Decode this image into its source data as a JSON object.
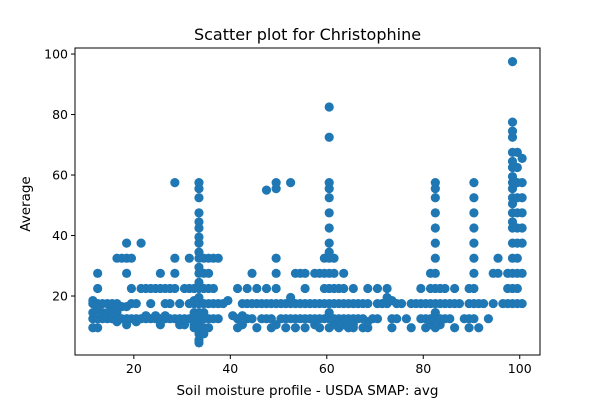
{
  "chart_data": {
    "type": "scatter",
    "title": "Scatter plot for Christophine",
    "xlabel": "Soil moisture profile - USDA SMAP: avg",
    "ylabel": "Average",
    "xlim": [
      7.8,
      104.2
    ],
    "ylim": [
      0.5,
      102.0
    ],
    "xticks": [
      20,
      40,
      60,
      80,
      100
    ],
    "yticks": [
      20,
      40,
      60,
      80,
      100
    ],
    "grid": false,
    "legend": "none",
    "marker_color": "#1f77b4",
    "columns": [
      {
        "x": 11.5,
        "y": [
          9.5,
          12.5,
          14.5,
          17.5,
          18.5
        ]
      },
      {
        "x": 12.5,
        "y": [
          9.5,
          12.5,
          15.5,
          17.5,
          22.5,
          27.5
        ]
      },
      {
        "x": 13.5,
        "y": [
          12.5,
          14.5,
          17.5
        ]
      },
      {
        "x": 14.5,
        "y": [
          12.5,
          14.5,
          17.5
        ]
      },
      {
        "x": 15.5,
        "y": [
          12.5,
          15.5,
          17.5
        ]
      },
      {
        "x": 16.5,
        "y": [
          11.5,
          12.5,
          14.5,
          17.5,
          32.5
        ]
      },
      {
        "x": 17.5,
        "y": [
          12.5,
          16.5,
          32.5
        ]
      },
      {
        "x": 18.5,
        "y": [
          10.5,
          12.5,
          16.5,
          27.5,
          32.5,
          37.5
        ]
      },
      {
        "x": 19.5,
        "y": [
          12.5,
          17.5,
          22.5,
          32.5
        ]
      },
      {
        "x": 20.5,
        "y": [
          11.5,
          12.5,
          17.5
        ]
      },
      {
        "x": 21.5,
        "y": [
          12.5,
          22.5,
          37.5
        ]
      },
      {
        "x": 22.5,
        "y": [
          12.5,
          13.5,
          22.5
        ]
      },
      {
        "x": 23.5,
        "y": [
          12.5,
          17.5,
          22.5
        ]
      },
      {
        "x": 24.5,
        "y": [
          12.5,
          13.5,
          22.5
        ]
      },
      {
        "x": 25.5,
        "y": [
          10.5,
          12.5,
          22.5,
          27.5
        ]
      },
      {
        "x": 26.5,
        "y": [
          12.5,
          13.5,
          17.5,
          22.5
        ]
      },
      {
        "x": 27.5,
        "y": [
          12.5,
          17.5,
          22.5
        ]
      },
      {
        "x": 28.5,
        "y": [
          12.5,
          22.5,
          27.5,
          32.5,
          57.5
        ]
      },
      {
        "x": 29.5,
        "y": [
          10.5,
          12.5,
          17.5
        ]
      },
      {
        "x": 30.5,
        "y": [
          10.5,
          12.5,
          22.5
        ]
      },
      {
        "x": 31.5,
        "y": [
          12.5,
          17.5,
          22.5,
          32.5
        ]
      },
      {
        "x": 32.5,
        "y": [
          9.5,
          10.5,
          12.5,
          14.5,
          17.5,
          18.5,
          22.5
        ]
      },
      {
        "x": 33.5,
        "y": [
          4.5,
          5.5,
          7.5,
          9.5,
          11.5,
          12.5,
          14.5,
          17.5,
          19.5,
          22.5,
          24.5,
          27.5,
          29.5,
          32.5,
          34.5,
          37.5,
          39.5,
          42.5,
          44.5,
          47.5,
          52.5,
          55.5,
          57.5
        ]
      },
      {
        "x": 34.5,
        "y": [
          7.5,
          9.5,
          12.5,
          14.5,
          17.5,
          22.5,
          27.5,
          32.5
        ]
      },
      {
        "x": 35.5,
        "y": [
          9.5,
          12.5,
          17.5,
          22.5,
          27.5,
          32.5
        ]
      },
      {
        "x": 36.5,
        "y": [
          12.5,
          17.5,
          22.5,
          32.5
        ]
      },
      {
        "x": 37.5,
        "y": [
          12.5,
          17.5,
          32.5
        ]
      },
      {
        "x": 38.5,
        "y": [
          17.5
        ]
      },
      {
        "x": 39.5,
        "y": [
          18.5
        ]
      },
      {
        "x": 40.5,
        "y": [
          13.5
        ]
      },
      {
        "x": 41.5,
        "y": [
          9.5,
          12.5,
          22.5
        ]
      },
      {
        "x": 42.5,
        "y": [
          10.5,
          13.5,
          17.5
        ]
      },
      {
        "x": 43.5,
        "y": [
          12.5,
          17.5,
          22.5
        ]
      },
      {
        "x": 44.5,
        "y": [
          12.5,
          17.5,
          27.5
        ]
      },
      {
        "x": 45.5,
        "y": [
          9.5,
          17.5,
          22.5
        ]
      },
      {
        "x": 46.5,
        "y": [
          12.5,
          17.5
        ]
      },
      {
        "x": 47.5,
        "y": [
          12.5,
          17.5,
          22.5,
          55.0
        ]
      },
      {
        "x": 48.5,
        "y": [
          9.5,
          12.5,
          17.5
        ]
      },
      {
        "x": 49.5,
        "y": [
          10.5,
          17.5,
          22.5,
          27.5,
          32.5,
          55.5,
          57.5
        ]
      },
      {
        "x": 50.5,
        "y": [
          12.5,
          17.5
        ]
      },
      {
        "x": 51.5,
        "y": [
          9.5,
          12.5,
          17.5
        ]
      },
      {
        "x": 52.5,
        "y": [
          12.5,
          17.5,
          19.5,
          57.5
        ]
      },
      {
        "x": 53.5,
        "y": [
          9.5,
          12.5,
          17.5,
          27.5
        ]
      },
      {
        "x": 54.5,
        "y": [
          12.5,
          17.5,
          27.5
        ]
      },
      {
        "x": 55.5,
        "y": [
          9.5,
          12.5,
          17.5,
          22.5,
          27.5
        ]
      },
      {
        "x": 56.5,
        "y": [
          12.5,
          17.5
        ]
      },
      {
        "x": 57.5,
        "y": [
          10.5,
          12.5,
          17.5,
          27.5
        ]
      },
      {
        "x": 58.5,
        "y": [
          9.5,
          12.5,
          17.5,
          27.5
        ]
      },
      {
        "x": 59.5,
        "y": [
          12.5,
          17.5,
          22.5,
          27.5,
          32.5
        ]
      },
      {
        "x": 60.5,
        "y": [
          9.5,
          12.5,
          14.5,
          17.5,
          22.5,
          27.5,
          32.5,
          34.5,
          37.5,
          42.5,
          47.5,
          52.5,
          55.5,
          57.5,
          72.5,
          82.5
        ]
      },
      {
        "x": 61.5,
        "y": [
          10.5,
          12.5,
          17.5,
          22.5,
          27.5,
          32.5
        ]
      },
      {
        "x": 62.5,
        "y": [
          9.5,
          12.5,
          17.5,
          22.5
        ]
      },
      {
        "x": 63.5,
        "y": [
          10.5,
          12.5,
          17.5,
          22.5,
          27.5
        ]
      },
      {
        "x": 64.5,
        "y": [
          9.5,
          11.5,
          12.5,
          17.5
        ]
      },
      {
        "x": 65.5,
        "y": [
          9.5,
          10.5,
          12.5,
          17.5,
          22.5
        ]
      },
      {
        "x": 66.5,
        "y": [
          12.5,
          17.5
        ]
      },
      {
        "x": 67.5,
        "y": [
          9.5,
          12.5,
          17.5
        ]
      },
      {
        "x": 68.5,
        "y": [
          9.5,
          11.5,
          17.5,
          22.5
        ]
      },
      {
        "x": 69.5,
        "y": [
          12.5
        ]
      },
      {
        "x": 70.5,
        "y": [
          12.5,
          17.5,
          22.5
        ]
      },
      {
        "x": 71.5,
        "y": [
          17.5
        ]
      },
      {
        "x": 72.5,
        "y": [
          17.5,
          19.5,
          22.5
        ]
      },
      {
        "x": 73.5,
        "y": [
          9.5,
          12.5,
          18.5
        ]
      },
      {
        "x": 74.5,
        "y": [
          12.5,
          17.5
        ]
      },
      {
        "x": 75.5,
        "y": [
          17.5
        ]
      },
      {
        "x": 76.5,
        "y": [
          12.5
        ]
      },
      {
        "x": 77.5,
        "y": [
          9.5,
          17.5
        ]
      },
      {
        "x": 78.5,
        "y": [
          17.5
        ]
      },
      {
        "x": 79.5,
        "y": [
          12.5,
          17.5,
          22.5
        ]
      },
      {
        "x": 80.5,
        "y": [
          9.5,
          12.5,
          17.5
        ]
      },
      {
        "x": 81.5,
        "y": [
          10.5,
          12.5,
          17.5,
          22.5,
          27.5
        ]
      },
      {
        "x": 82.5,
        "y": [
          9.5,
          12.5,
          14.5,
          17.5,
          22.5,
          27.5,
          32.5,
          37.5,
          42.5,
          47.5,
          52.5,
          55.5,
          57.5
        ]
      },
      {
        "x": 83.5,
        "y": [
          10.5,
          12.5,
          17.5,
          22.5
        ]
      },
      {
        "x": 84.5,
        "y": [
          12.5,
          17.5,
          22.5
        ]
      },
      {
        "x": 85.5,
        "y": [
          12.5,
          17.5
        ]
      },
      {
        "x": 86.5,
        "y": [
          9.5,
          17.5,
          22.5
        ]
      },
      {
        "x": 87.5,
        "y": [
          17.5
        ]
      },
      {
        "x": 88.5,
        "y": [
          12.5
        ]
      },
      {
        "x": 89.5,
        "y": [
          9.5,
          12.5,
          17.5,
          22.5
        ]
      },
      {
        "x": 90.5,
        "y": [
          12.5,
          17.5,
          22.5,
          27.5,
          32.5,
          37.5,
          42.5,
          47.5,
          52.5,
          57.5
        ]
      },
      {
        "x": 91.5,
        "y": [
          9.5,
          17.5
        ]
      },
      {
        "x": 92.5,
        "y": [
          17.5
        ]
      },
      {
        "x": 93.5,
        "y": [
          12.5
        ]
      },
      {
        "x": 94.5,
        "y": [
          17.5,
          27.5
        ]
      },
      {
        "x": 95.5,
        "y": [
          27.5,
          32.5
        ]
      },
      {
        "x": 96.5,
        "y": [
          17.5
        ]
      },
      {
        "x": 97.5,
        "y": [
          17.5,
          22.5,
          27.5
        ]
      },
      {
        "x": 98.5,
        "y": [
          17.5,
          22.5,
          27.5,
          32.5,
          37.5,
          42.5,
          44.5,
          47.5,
          50.5,
          52.5,
          55.5,
          57.5,
          59.5,
          62.5,
          64.5,
          67.5,
          72.5,
          74.5,
          77.5,
          97.5
        ]
      },
      {
        "x": 99.5,
        "y": [
          17.5,
          22.5,
          27.5,
          32.5,
          37.5,
          42.5,
          47.5,
          52.5,
          57.5,
          62.5,
          67.5
        ]
      },
      {
        "x": 100.5,
        "y": [
          17.5,
          27.5,
          37.5,
          42.5,
          47.5,
          52.5,
          57.5,
          65.5
        ]
      }
    ]
  }
}
